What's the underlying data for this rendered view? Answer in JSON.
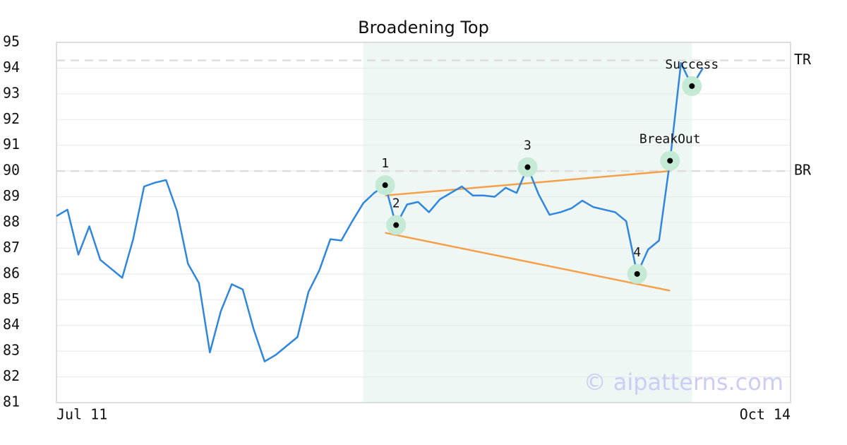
{
  "chart_data": {
    "type": "line",
    "title": "Broadening Top",
    "categories": [
      "Jul 11",
      null,
      null,
      null,
      null,
      null,
      null,
      null,
      null,
      null,
      null,
      null,
      null,
      null,
      null,
      null,
      null,
      null,
      null,
      null,
      null,
      null,
      null,
      null,
      null,
      null,
      null,
      null,
      null,
      null,
      null,
      null,
      null,
      null,
      null,
      null,
      null,
      null,
      null,
      null,
      null,
      null,
      null,
      null,
      null,
      null,
      null,
      null,
      null,
      null,
      null,
      null,
      null,
      null,
      null,
      null,
      null,
      null,
      null,
      null,
      null,
      null,
      null,
      null,
      null,
      null,
      null,
      "Oct 14"
    ],
    "series": [
      {
        "color": "#2e86de",
        "values": [
          88.25,
          88.5,
          86.75,
          87.85,
          86.55,
          86.2,
          85.85,
          87.35,
          89.4,
          89.55,
          89.65,
          88.45,
          86.4,
          85.65,
          82.95,
          84.55,
          85.6,
          85.4,
          83.85,
          82.6,
          82.85,
          83.2,
          83.55,
          85.3,
          86.15,
          87.35,
          87.3,
          88.05,
          88.75,
          89.15,
          89.45,
          87.9,
          88.7,
          88.8,
          88.4,
          88.9,
          89.15,
          89.4,
          89.05,
          89.05,
          89.0,
          89.35,
          89.15,
          90.15,
          89.1,
          88.3,
          88.4,
          88.55,
          88.85,
          88.6,
          88.5,
          88.4,
          88.05,
          86.0,
          86.95,
          87.3,
          90.4,
          94.2,
          93.3,
          94.0,
          null,
          null,
          null,
          null,
          null,
          null,
          null,
          null
        ]
      }
    ],
    "ylim": [
      81,
      95
    ],
    "yticks": [
      81,
      82,
      83,
      84,
      85,
      86,
      87,
      88,
      89,
      90,
      91,
      92,
      93,
      94,
      95
    ],
    "grid": true,
    "reference_lines": [
      {
        "label": "TR",
        "value": 94.3,
        "color": "#dddddd"
      },
      {
        "label": "BR",
        "value": 90.0,
        "color": "#dddddd"
      }
    ],
    "highlight": {
      "from_index": 28,
      "to_index": 58,
      "color": "#eef7f3"
    },
    "trend_lines": [
      {
        "color": "#f5a04a",
        "x": [
          30,
          56
        ],
        "values": [
          89.05,
          90.0
        ]
      },
      {
        "color": "#f5a04a",
        "x": [
          30,
          56
        ],
        "values": [
          87.6,
          85.35
        ]
      }
    ],
    "points": [
      {
        "label": "1",
        "index": 30
      },
      {
        "label": "2",
        "index": 31
      },
      {
        "label": "3",
        "index": 43
      },
      {
        "label": "4",
        "index": 53
      },
      {
        "label": "BreakOut",
        "index": 56
      },
      {
        "label": "Success",
        "index": 58
      }
    ],
    "watermark": "© aipatterns.com"
  }
}
